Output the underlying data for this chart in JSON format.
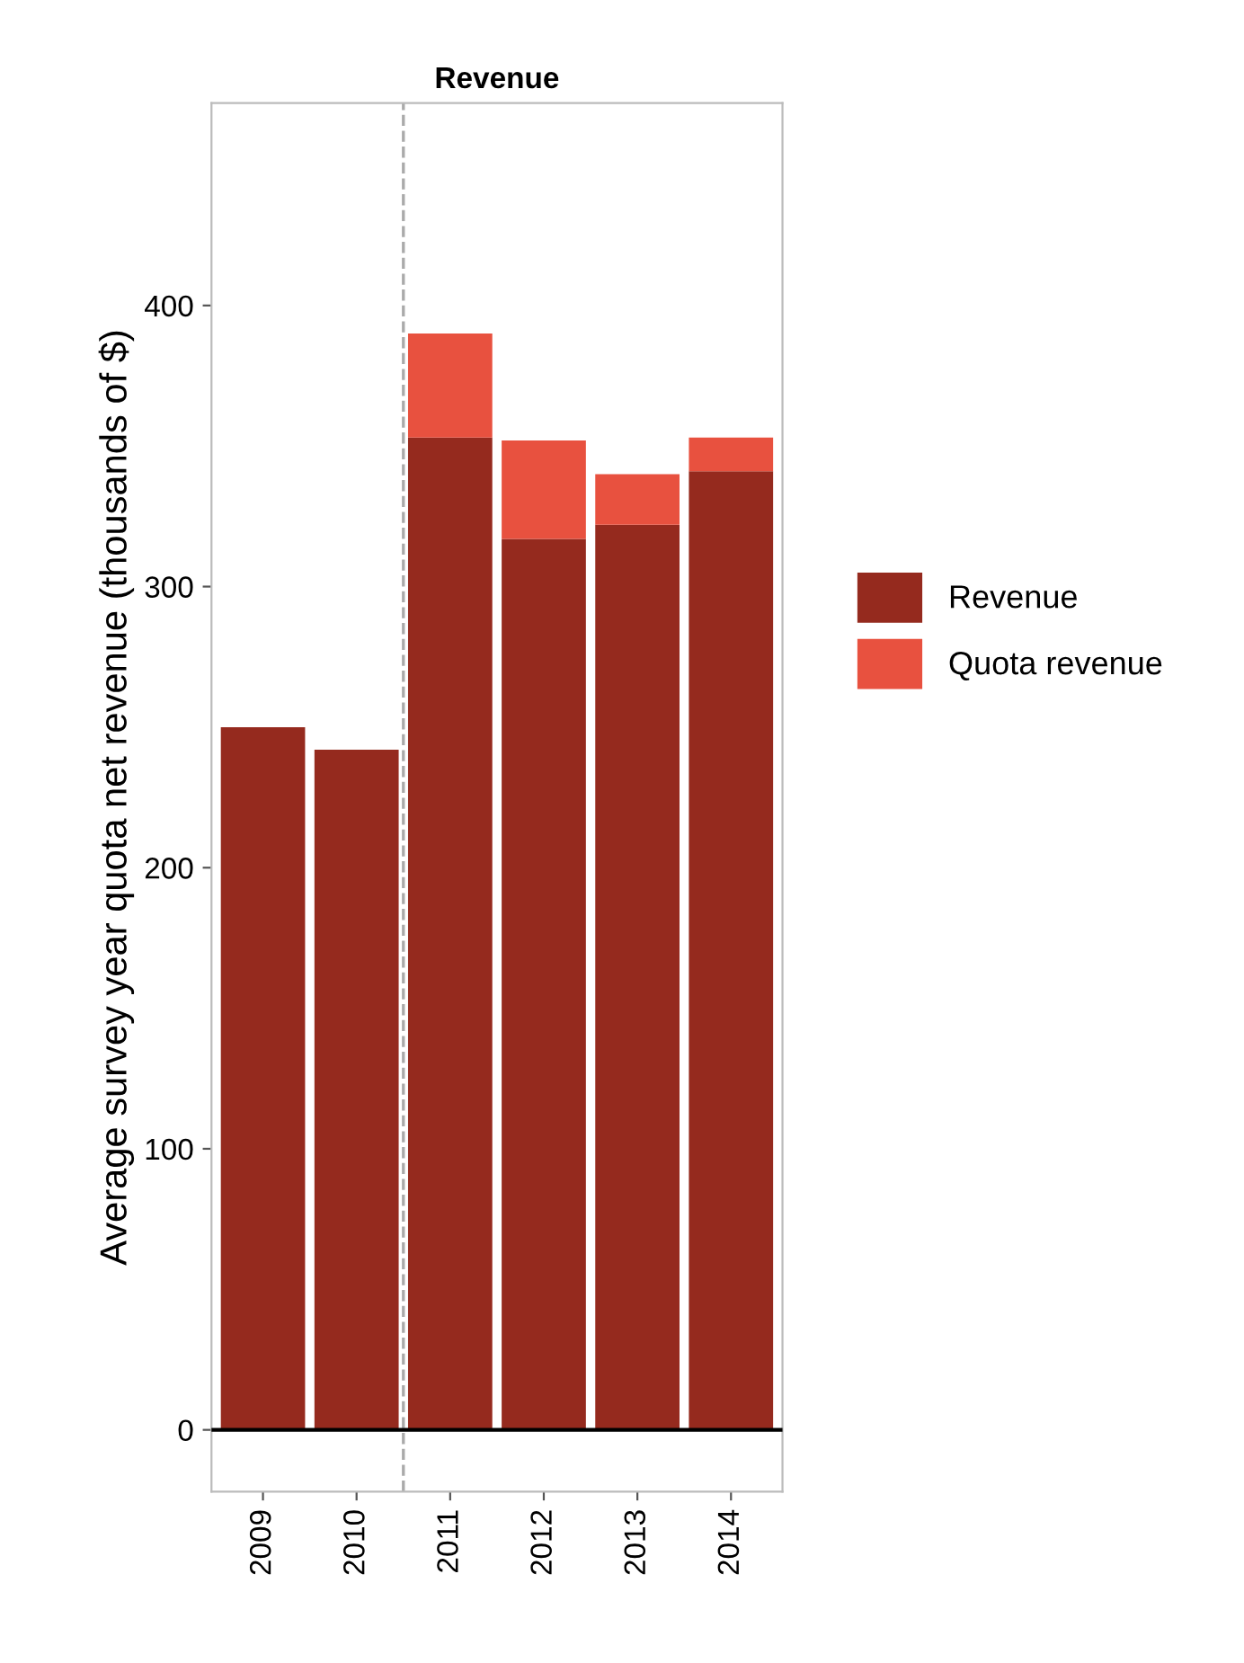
{
  "chart_data": {
    "type": "bar",
    "title": "Revenue",
    "ylabel": "Average survey year quota net revenue (thousands of $)",
    "categories": [
      "2009",
      "2010",
      "2011",
      "2012",
      "2013",
      "2014"
    ],
    "stacked": true,
    "series": [
      {
        "name": "Revenue",
        "color": "#952a1e",
        "values": [
          250,
          242,
          353,
          317,
          322,
          341
        ]
      },
      {
        "name": "Quota revenue",
        "color": "#e8513f",
        "values": [
          null,
          null,
          37,
          35,
          18,
          12
        ]
      }
    ],
    "ylim": [
      -22,
      472
    ],
    "yticks": [
      0,
      100,
      200,
      300,
      400
    ],
    "ref_lines": [
      {
        "axis": "x",
        "value": "2011",
        "color": "#aaaaaa",
        "line_style": "dashed"
      },
      {
        "axis": "y",
        "value": 0,
        "color": "#000000",
        "line_style": "solid"
      }
    ],
    "grid": false,
    "legend": "right"
  }
}
